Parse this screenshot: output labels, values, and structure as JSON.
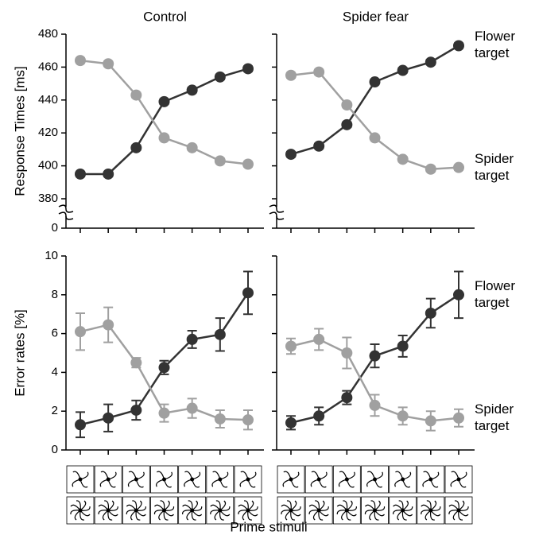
{
  "chart_data": [
    {
      "type": "line",
      "title": "Control",
      "ylabel": "Response Times [ms]",
      "axis_break": true,
      "categories": [
        null,
        null,
        null,
        null,
        null,
        null,
        null
      ],
      "ylim": [
        0,
        480
      ],
      "yticks": [
        0,
        380,
        400,
        420,
        440,
        460,
        480
      ],
      "show_tick_labels": true,
      "series": [
        {
          "color": "#333333",
          "values": [
            395,
            395,
            411,
            439,
            446,
            454,
            459
          ],
          "errors": [
            1.5,
            1.5,
            1.5,
            1.5,
            1.5,
            1.5,
            1.5
          ]
        },
        {
          "color": "#a0a0a0",
          "values": [
            464,
            462,
            443,
            417,
            411,
            403,
            401
          ],
          "errors": [
            1.5,
            1.5,
            1.5,
            1.5,
            1.5,
            1.5,
            1.5
          ]
        }
      ]
    },
    {
      "type": "line",
      "title": "Spider fear",
      "axis_break": true,
      "categories": [
        null,
        null,
        null,
        null,
        null,
        null,
        null
      ],
      "ylim": [
        0,
        480
      ],
      "yticks": [
        0,
        380,
        400,
        420,
        440,
        460,
        480
      ],
      "show_tick_labels": false,
      "series": [
        {
          "name": "Flower target",
          "color": "#333333",
          "values": [
            407,
            412,
            425,
            451,
            458,
            463,
            473
          ],
          "errors": [
            1.5,
            1.5,
            1.5,
            1.5,
            1.5,
            1.5,
            1.5
          ]
        },
        {
          "name": "Spider target",
          "color": "#a0a0a0",
          "values": [
            455,
            457,
            437,
            417,
            404,
            398,
            399
          ],
          "errors": [
            1.5,
            1.5,
            1.5,
            1.5,
            1.5,
            1.5,
            1.5
          ]
        }
      ]
    },
    {
      "type": "line",
      "ylabel": "Error rates [%]",
      "axis_break": false,
      "categories": [
        null,
        null,
        null,
        null,
        null,
        null,
        null
      ],
      "ylim": [
        0,
        10
      ],
      "yticks": [
        0,
        2,
        4,
        6,
        8,
        10
      ],
      "show_tick_labels": true,
      "series": [
        {
          "color": "#333333",
          "values": [
            1.3,
            1.65,
            2.05,
            4.25,
            5.7,
            5.95,
            8.1
          ],
          "errors": [
            0.65,
            0.7,
            0.5,
            0.35,
            0.45,
            0.85,
            1.1
          ]
        },
        {
          "color": "#a0a0a0",
          "values": [
            6.1,
            6.45,
            4.5,
            1.9,
            2.15,
            1.6,
            1.55
          ],
          "errors": [
            0.95,
            0.9,
            0.25,
            0.45,
            0.5,
            0.45,
            0.5
          ]
        }
      ]
    },
    {
      "type": "line",
      "axis_break": false,
      "categories": [
        null,
        null,
        null,
        null,
        null,
        null,
        null
      ],
      "ylim": [
        0,
        10
      ],
      "yticks": [
        0,
        2,
        4,
        6,
        8,
        10
      ],
      "show_tick_labels": false,
      "series": [
        {
          "name": "Flower target",
          "color": "#333333",
          "values": [
            1.4,
            1.75,
            2.7,
            4.85,
            5.35,
            7.05,
            8.0
          ],
          "errors": [
            0.35,
            0.45,
            0.35,
            0.6,
            0.55,
            0.75,
            1.2
          ]
        },
        {
          "name": "Spider target",
          "color": "#a0a0a0",
          "values": [
            5.35,
            5.7,
            5.0,
            2.3,
            1.75,
            1.5,
            1.65
          ],
          "errors": [
            0.4,
            0.55,
            0.8,
            0.55,
            0.45,
            0.5,
            0.45
          ]
        }
      ]
    }
  ],
  "xlabel": "Prime stimuli"
}
